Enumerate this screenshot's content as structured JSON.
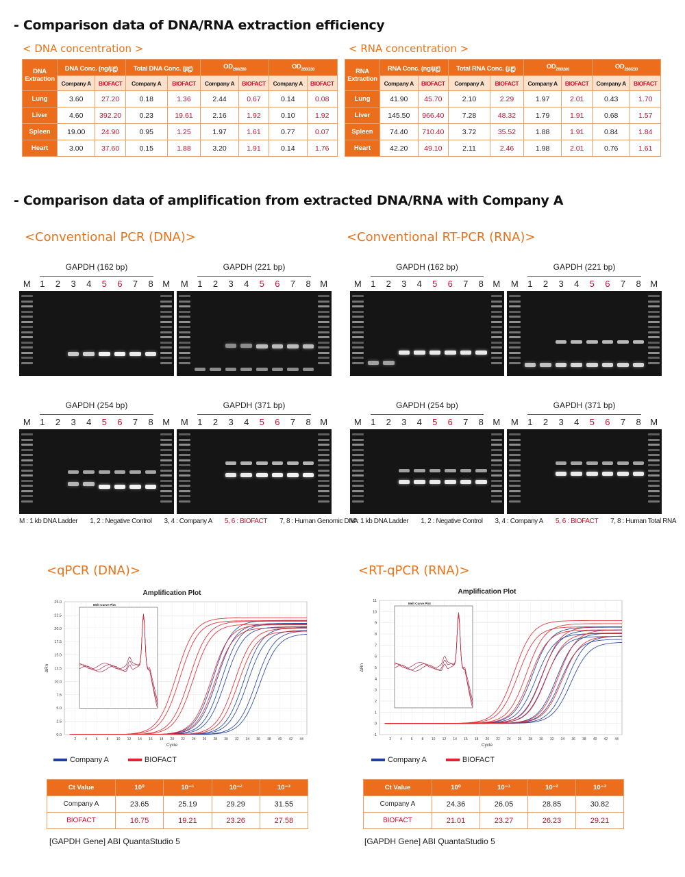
{
  "sections": {
    "extraction_heading": "- Comparison data of DNA/RNA extraction efficiency",
    "amplification_heading": "- Comparison data of amplification from extracted DNA/RNA with Company A"
  },
  "dna_table": {
    "title": "< DNA concentration >",
    "corner": [
      "DNA",
      "Extraction"
    ],
    "groups": [
      "DNA Conc. (ng/㎍)",
      "Total DNA Conc. (㎍)",
      "OD260/280",
      "OD260/230"
    ],
    "od_main": "OD",
    "od_subs": [
      "260/280",
      "260/230"
    ],
    "subheads": [
      "Company A",
      "BIOFACT"
    ],
    "rows": [
      {
        "label": "Lung",
        "values": [
          "3.60",
          "27.20",
          "0.18",
          "1.36",
          "2.44",
          "0.67",
          "0.14",
          "0.08"
        ]
      },
      {
        "label": "Liver",
        "values": [
          "4.60",
          "392.20",
          "0.23",
          "19.61",
          "2.16",
          "1.92",
          "0.10",
          "1.92"
        ]
      },
      {
        "label": "Spleen",
        "values": [
          "19.00",
          "24.90",
          "0.95",
          "1.25",
          "1.97",
          "1.61",
          "0.77",
          "0.07"
        ]
      },
      {
        "label": "Heart",
        "values": [
          "3.00",
          "37.60",
          "0.15",
          "1.88",
          "3.20",
          "1.91",
          "0.14",
          "1.76"
        ]
      }
    ]
  },
  "rna_table": {
    "title": "< RNA concentration >",
    "corner": [
      "RNA",
      "Extraction"
    ],
    "groups": [
      "RNA Conc. (ng/㎍)",
      "Total RNA Conc. (㎍)"
    ],
    "subheads": [
      "Company A",
      "BIOFACT"
    ],
    "rows": [
      {
        "label": "Lung",
        "values": [
          "41.90",
          "45.70",
          "2.10",
          "2.29",
          "1.97",
          "2.01",
          "0.43",
          "1.70"
        ]
      },
      {
        "label": "Liver",
        "values": [
          "145.50",
          "966.40",
          "7.28",
          "48.32",
          "1.79",
          "1.91",
          "0.68",
          "1.57"
        ]
      },
      {
        "label": "Spleen",
        "values": [
          "74.40",
          "710.40",
          "3.72",
          "35.52",
          "1.88",
          "1.91",
          "0.84",
          "1.84"
        ]
      },
      {
        "label": "Heart",
        "values": [
          "42.20",
          "49.10",
          "2.11",
          "2.46",
          "1.98",
          "2.01",
          "0.76",
          "1.61"
        ]
      }
    ]
  },
  "pcr_dna": {
    "title": "<Conventional PCR (DNA)>",
    "gels": [
      "GAPDH (162 bp)",
      "GAPDH (221 bp)",
      "GAPDH (254 bp)",
      "GAPDH (371 bp)"
    ],
    "legend": [
      "M : 1 kb DNA Ladder",
      "1, 2 : Negative Control",
      "3, 4 : Company A",
      "5, 6 : BIOFACT",
      "7, 8 : Human Genomic DNA"
    ]
  },
  "pcr_rna": {
    "title": "<Conventional RT-PCR (RNA)>",
    "gels": [
      "GAPDH (162 bp)",
      "GAPDH (221 bp)",
      "GAPDH (254 bp)",
      "GAPDH (371 bp)"
    ],
    "legend": [
      "M : 1 kb DNA Ladder",
      "1, 2 : Negative Control",
      "3, 4 : Company A",
      "5, 6 : BIOFACT",
      "7, 8 : Human Total RNA"
    ]
  },
  "lane_labels": [
    "M",
    "1",
    "2",
    "3",
    "4",
    "5",
    "6",
    "7",
    "8",
    "M"
  ],
  "qpcr_dna": {
    "title": "<qPCR (DNA)>",
    "plot_title": "Amplification Plot",
    "inset_title": "Melt Curve Plot",
    "xlabel": "Cycle",
    "ylabel": "ΔRn",
    "legend": [
      "Company A",
      "BIOFACT"
    ],
    "caption": "[GAPDH Gene] ABI QuantaStudio 5"
  },
  "qpcr_rna": {
    "title": "<RT-qPCR (RNA)>",
    "plot_title": "Amplification Plot",
    "inset_title": "Melt Curve Plot",
    "xlabel": "Cycle",
    "ylabel": "ΔRn",
    "legend": [
      "Company A",
      "BIOFACT"
    ],
    "caption": "[GAPDH Gene] ABI QuantaStudio 5"
  },
  "ct_dna": {
    "header": [
      "Ct Value",
      "10⁰",
      "10⁻¹",
      "10⁻²",
      "10⁻³"
    ],
    "rows": [
      {
        "label": "Company A",
        "values": [
          "23.65",
          "25.19",
          "29.29",
          "31.55"
        ]
      },
      {
        "label": "BIOFACT",
        "values": [
          "16.75",
          "19.21",
          "23.26",
          "27.58"
        ]
      }
    ]
  },
  "ct_rna": {
    "header": [
      "Ct Value",
      "10⁰",
      "10⁻¹",
      "10⁻²",
      "10⁻³"
    ],
    "rows": [
      {
        "label": "Company A",
        "values": [
          "24.36",
          "26.05",
          "28.85",
          "30.82"
        ]
      },
      {
        "label": "BIOFACT",
        "values": [
          "21.01",
          "23.27",
          "26.23",
          "29.21"
        ]
      }
    ]
  },
  "chart_data": [
    {
      "type": "line",
      "name": "qpcr-dna-amplification",
      "title": "Amplification Plot",
      "xlabel": "Cycle",
      "ylabel": "ΔRn",
      "xlim": [
        0,
        45
      ],
      "ylim": [
        0,
        25
      ],
      "xticks": [
        2,
        4,
        6,
        8,
        10,
        12,
        14,
        16,
        18,
        20,
        22,
        24,
        26,
        28,
        30,
        32,
        34,
        36,
        38,
        40,
        42,
        44
      ],
      "yticks": [
        "0.0",
        "2.5",
        "5.0",
        "7.5",
        "10.0",
        "12.5",
        "15.0",
        "17.5",
        "20.0",
        "22.5",
        "25.0"
      ],
      "series": [
        {
          "name": "Company A",
          "color": "#1f3f9a",
          "ct": [
            23.65,
            25.19,
            29.29,
            31.55
          ],
          "plateau": 21.5
        },
        {
          "name": "BIOFACT",
          "color": "#e0242b",
          "ct": [
            16.75,
            19.21,
            23.26,
            27.58
          ],
          "plateau": 22.0
        }
      ]
    },
    {
      "type": "line",
      "name": "rtqpcr-rna-amplification",
      "title": "Amplification Plot",
      "xlabel": "Cycle",
      "ylabel": "ΔRn",
      "xlim": [
        0,
        45
      ],
      "ylim": [
        -1,
        11
      ],
      "xticks": [
        2,
        4,
        6,
        8,
        10,
        12,
        14,
        16,
        18,
        20,
        22,
        24,
        26,
        28,
        30,
        32,
        34,
        36,
        38,
        40,
        42,
        44
      ],
      "yticks": [
        "-1",
        "0",
        "1",
        "2",
        "3",
        "4",
        "5",
        "6",
        "7",
        "8",
        "9",
        "10",
        "11"
      ],
      "series": [
        {
          "name": "Company A",
          "color": "#1f3f9a",
          "ct": [
            24.36,
            26.05,
            28.85,
            30.82
          ],
          "plateau": 8.6
        },
        {
          "name": "BIOFACT",
          "color": "#e0242b",
          "ct": [
            21.01,
            23.27,
            26.23,
            29.21
          ],
          "plateau": 9.2
        }
      ]
    }
  ]
}
